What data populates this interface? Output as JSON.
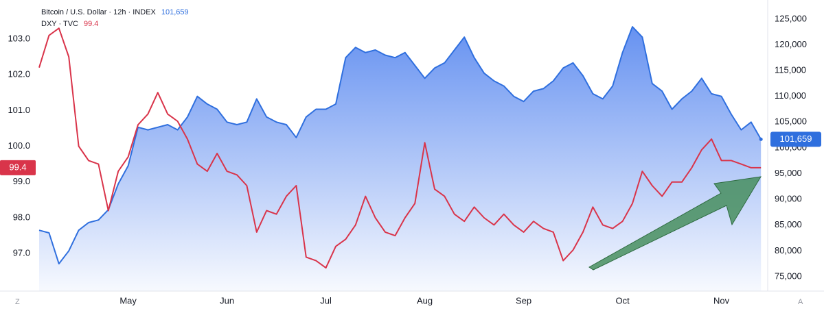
{
  "chart_data": {
    "type": "line",
    "categories": [
      null,
      null,
      null,
      null,
      null,
      null,
      null,
      null,
      null,
      "May",
      null,
      null,
      null,
      null,
      null,
      null,
      null,
      null,
      null,
      "Jun",
      null,
      null,
      null,
      null,
      null,
      null,
      null,
      null,
      null,
      "Jul",
      null,
      null,
      null,
      null,
      null,
      null,
      null,
      null,
      null,
      "Aug",
      null,
      null,
      null,
      null,
      null,
      null,
      null,
      null,
      null,
      "Sep",
      null,
      null,
      null,
      null,
      null,
      null,
      null,
      null,
      null,
      "Oct",
      null,
      null,
      null,
      null,
      null,
      null,
      null,
      null,
      null,
      "Nov",
      null,
      null,
      null,
      null
    ],
    "series": [
      {
        "name": "Bitcoin / U.S. Dollar · 12h · INDEX",
        "color": "#2f6fde",
        "axis": "y2",
        "values": [
          84000,
          83500,
          77500,
          80000,
          84000,
          85500,
          86000,
          88000,
          93000,
          96500,
          104000,
          103500,
          104000,
          104500,
          103500,
          106000,
          110000,
          108500,
          107500,
          105000,
          104500,
          105000,
          109500,
          106000,
          105000,
          104500,
          102000,
          106000,
          107500,
          107500,
          108500,
          117500,
          119500,
          118500,
          119000,
          118000,
          117500,
          118500,
          116000,
          113500,
          115500,
          116500,
          119000,
          121500,
          117500,
          114500,
          113000,
          112000,
          110000,
          109000,
          111000,
          111500,
          113000,
          115500,
          116500,
          114000,
          110500,
          109500,
          112000,
          118500,
          123500,
          121500,
          112500,
          111000,
          107500,
          109500,
          111000,
          113500,
          110500,
          110000,
          106500,
          103500,
          105000,
          101659
        ],
        "value_labels": [
          null,
          null,
          null,
          null,
          null,
          null,
          null,
          null,
          null,
          null,
          null,
          null,
          null,
          null,
          null,
          null,
          null,
          null,
          null,
          null,
          null,
          null,
          null,
          null,
          null,
          null,
          null,
          null,
          null,
          null,
          null,
          null,
          null,
          null,
          null,
          null,
          null,
          null,
          null,
          null,
          null,
          null,
          null,
          null,
          null,
          null,
          null,
          null,
          null,
          null,
          null,
          null,
          null,
          null,
          null,
          null,
          null,
          null,
          null,
          null,
          null,
          null,
          null,
          null,
          null,
          null,
          null,
          null,
          null,
          null,
          null,
          null,
          null,
          "101,659"
        ]
      },
      {
        "name": "DXY · TVC",
        "color": "#d9344a",
        "values": [
          102.2,
          103.1,
          103.3,
          102.5,
          100.0,
          99.6,
          99.5,
          98.2,
          99.3,
          99.7,
          100.6,
          100.9,
          101.5,
          100.9,
          100.7,
          100.2,
          99.5,
          99.3,
          99.8,
          99.3,
          99.2,
          98.9,
          97.6,
          98.2,
          98.1,
          98.6,
          98.9,
          96.9,
          96.8,
          96.6,
          97.2,
          97.4,
          97.8,
          98.6,
          98.0,
          97.6,
          97.5,
          98.0,
          98.4,
          100.1,
          98.8,
          98.6,
          98.1,
          97.9,
          98.3,
          98.0,
          97.8,
          98.1,
          97.8,
          97.6,
          97.9,
          97.7,
          97.6,
          96.8,
          97.1,
          97.6,
          98.3,
          97.8,
          97.7,
          97.9,
          98.4,
          99.3,
          98.9,
          98.6,
          99.0,
          99.0,
          99.4,
          99.9,
          100.2,
          99.6,
          99.6,
          99.5,
          99.4,
          99.4
        ]
      }
    ],
    "ylim": [
      95.95,
      104.09
    ],
    "yticks": [
      {
        "value": 97,
        "label": "97.0"
      },
      {
        "value": 98,
        "label": "98.0"
      },
      {
        "value": 99,
        "label": "99.0"
      },
      {
        "value": 100,
        "label": "100.0"
      },
      {
        "value": 101,
        "label": "101.0"
      },
      {
        "value": 102,
        "label": "102.0"
      },
      {
        "value": 103,
        "label": "103.0"
      }
    ],
    "y2lim": [
      72200,
      128700
    ],
    "y2ticks": [
      {
        "value": 75000,
        "label": "75,000"
      },
      {
        "value": 80000,
        "label": "80,000"
      },
      {
        "value": 85000,
        "label": "85,000"
      },
      {
        "value": 90000,
        "label": "90,000"
      },
      {
        "value": 95000,
        "label": "95,000"
      },
      {
        "value": 100000,
        "label": "100,000"
      },
      {
        "value": 105000,
        "label": "105,000"
      },
      {
        "value": 110000,
        "label": "110,000"
      },
      {
        "value": 115000,
        "label": "115,000"
      },
      {
        "value": 120000,
        "label": "120,000"
      },
      {
        "value": 125000,
        "label": "125,000"
      }
    ],
    "grid": false,
    "axis_buttons": [
      "Z",
      "A"
    ]
  }
}
